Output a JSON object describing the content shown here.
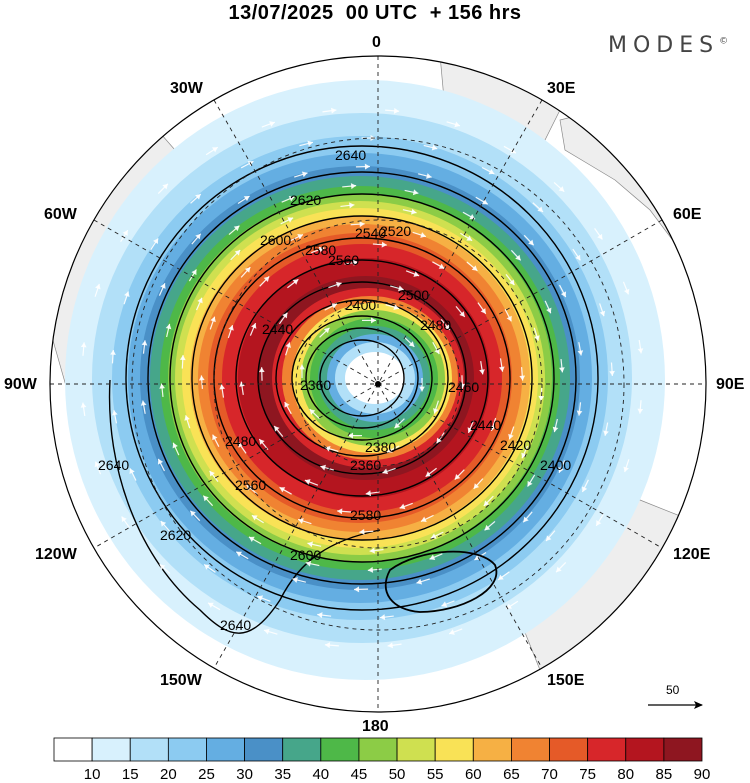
{
  "title": "13/07/2025  00 UTC  + 156 hrs",
  "brand": "MODES",
  "brand_mark": "©",
  "lon_labels": {
    "l0": "0",
    "l30e": "30E",
    "l60e": "60E",
    "l90e": "90E",
    "l120e": "120E",
    "l150e": "150E",
    "l180": "180",
    "l150w": "150W",
    "l120w": "120W",
    "l90w": "90W",
    "l60w": "60W",
    "l30w": "30W"
  },
  "contour_labels": [
    "2640",
    "2620",
    "2600",
    "2580",
    "2560",
    "2540",
    "2520",
    "2500",
    "2480",
    "2460",
    "2440",
    "2420",
    "2400",
    "2380",
    "2360",
    "2640",
    "2620",
    "2600",
    "2580",
    "2560",
    "2480",
    "2440",
    "2400",
    "2360",
    "2640"
  ],
  "contour_levels": [
    2360,
    2400,
    2440,
    2480,
    2520,
    2560,
    2600,
    2640
  ],
  "colorbar": {
    "ticks": [
      "10",
      "15",
      "20",
      "25",
      "30",
      "35",
      "40",
      "45",
      "50",
      "55",
      "60",
      "65",
      "70",
      "75",
      "80",
      "85",
      "90"
    ],
    "colors": [
      "#ffffff",
      "#d8f1fd",
      "#b2e0f8",
      "#8ccbf1",
      "#64aee2",
      "#4a90c7",
      "#46a68a",
      "#4eb848",
      "#8ccc46",
      "#cfe050",
      "#f9e256",
      "#f6b044",
      "#f08332",
      "#e55a28",
      "#d7262a",
      "#b4151f",
      "#8e1620"
    ]
  },
  "vector_reference": "50",
  "colors": {
    "land": "#eeeeee",
    "grid": "#222222",
    "contour": "#000000",
    "arrow": "#ffffff"
  }
}
